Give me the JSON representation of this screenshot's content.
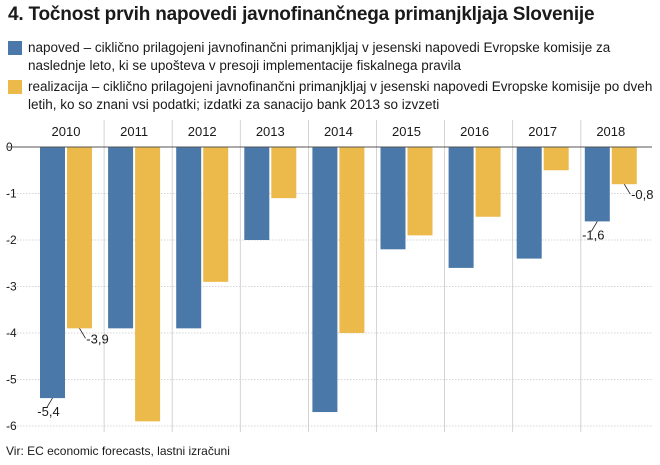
{
  "title": "4. Točnost prvih napovedi javnofinančnega primanjkljaja Slovenije",
  "source": "Vir: EC economic forecasts, lastni izračuni",
  "colors": {
    "napoved": "#4a78a8",
    "realizacija": "#ecba4a",
    "grid": "#c9c9c9",
    "zero": "#555555"
  },
  "legend": [
    {
      "name": "napoved",
      "desc": " – ciklično prilagojeni javnofinančni primanjkljaj v jesenski napovedi Evropske komisije za naslednje leto, ki se upošteva v presoji implementacije fiskalnega pravila"
    },
    {
      "name": "realizacija",
      "desc": " – ciklično prilagojeni javnofinančni primanjkljaj v jesenski napovedi Evropske komisije po dveh letih, ko so znani vsi podatki; izdatki za sanacijo bank 2013 so izvzeti"
    }
  ],
  "chart_data": {
    "type": "bar",
    "title": "4. Točnost prvih napovedi javnofinančnega primanjkljaja Slovenije",
    "categories": [
      "2010",
      "2011",
      "2012",
      "2013",
      "2014",
      "2015",
      "2016",
      "2017",
      "2018"
    ],
    "series": [
      {
        "name": "napoved",
        "values": [
          -5.4,
          -3.9,
          -3.9,
          -2.0,
          -5.7,
          -2.2,
          -2.6,
          -2.4,
          -1.6
        ]
      },
      {
        "name": "realizacija",
        "values": [
          -3.9,
          -5.9,
          -2.9,
          -1.1,
          -4.0,
          -1.9,
          -1.5,
          -0.5,
          -0.8
        ]
      }
    ],
    "ylim": [
      -6,
      0
    ],
    "yticks": [
      "0",
      "-1",
      "-2",
      "-3",
      "-4",
      "-5",
      "-6"
    ],
    "ytick_values": [
      0,
      -1,
      -2,
      -3,
      -4,
      -5,
      -6
    ],
    "data_labels": [
      {
        "series": 0,
        "index": 0,
        "text": "-5,4"
      },
      {
        "series": 1,
        "index": 0,
        "text": "-3,9"
      },
      {
        "series": 0,
        "index": 8,
        "text": "-1,6"
      },
      {
        "series": 1,
        "index": 8,
        "text": "-0,8"
      }
    ],
    "xlabel": "",
    "ylabel": "",
    "grid": true
  }
}
